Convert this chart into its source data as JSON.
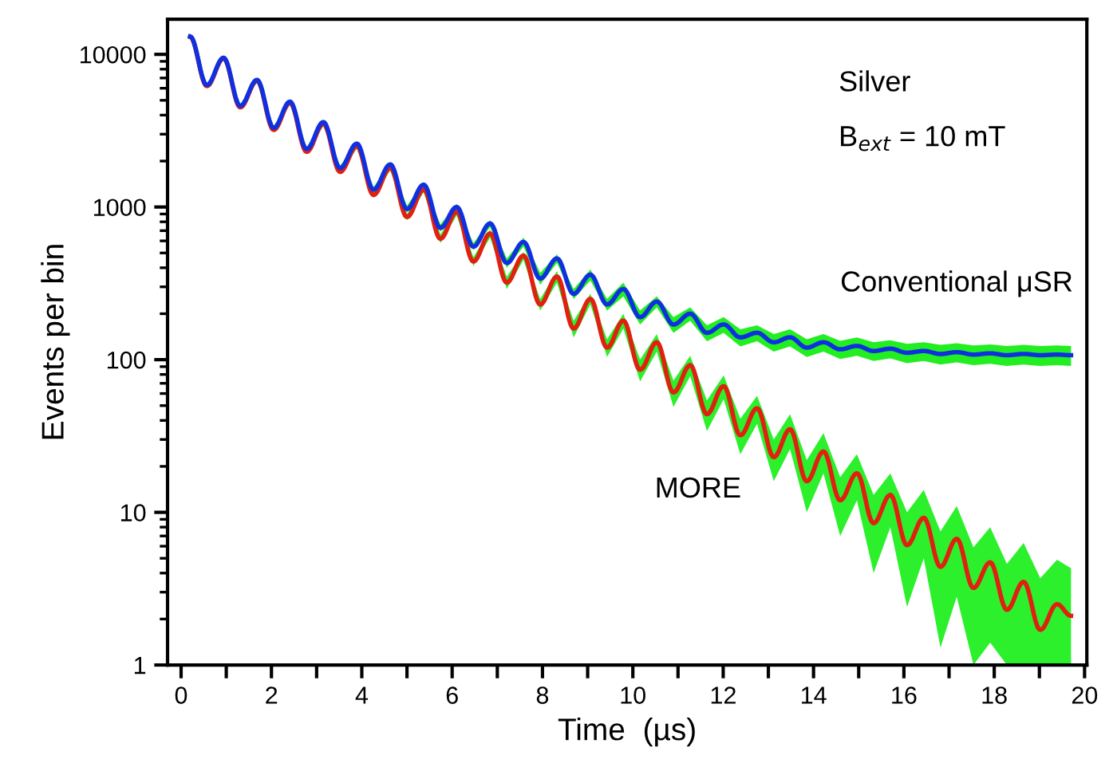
{
  "chart_data": {
    "type": "line",
    "xlabel": "Time  (µs)",
    "ylabel": "Events per bin",
    "log": "y",
    "grid": false,
    "legend": false,
    "marker": "none",
    "line_style": "solid",
    "xlim": [
      -0.3,
      20.05
    ],
    "ylim": [
      1,
      17000
    ],
    "xticks": [
      0,
      {
        "value": 1,
        "label": null
      },
      2,
      {
        "value": 3,
        "label": null
      },
      4,
      {
        "value": 5,
        "label": null
      },
      6,
      {
        "value": 7,
        "label": null
      },
      8,
      {
        "value": 9,
        "label": null
      },
      10,
      {
        "value": 11,
        "label": null
      },
      12,
      {
        "value": 13,
        "label": null
      },
      14,
      {
        "value": 15,
        "label": null
      },
      16,
      {
        "value": 17,
        "label": null
      },
      18,
      {
        "value": 19,
        "label": null
      },
      20
    ],
    "yticks": [
      1,
      10,
      100,
      1000,
      10000
    ],
    "annotations": [
      "Silver",
      "B$_{ext}$ = 10 mT"
    ],
    "x": [
      0.2,
      0.57,
      0.94,
      1.31,
      1.68,
      2.05,
      2.41,
      2.78,
      3.15,
      3.52,
      3.89,
      4.26,
      4.63,
      5.0,
      5.37,
      5.74,
      6.1,
      6.47,
      6.84,
      7.21,
      7.58,
      7.95,
      8.32,
      8.69,
      9.06,
      9.43,
      9.79,
      10.16,
      10.53,
      10.9,
      11.27,
      11.64,
      12.01,
      12.38,
      12.75,
      13.12,
      13.48,
      13.85,
      14.22,
      14.59,
      14.96,
      15.33,
      15.7,
      16.07,
      16.44,
      16.81,
      17.17,
      17.54,
      17.91,
      18.28,
      18.65,
      19.02,
      19.39,
      19.7
    ],
    "series": [
      {
        "name": "Conventional μSR",
        "color": "#1030e0",
        "values": [
          13100,
          6300,
          9500,
          4600,
          6800,
          3300,
          4900,
          2400,
          3600,
          1800,
          2600,
          1300,
          1900,
          970,
          1400,
          730,
          1000,
          550,
          780,
          430,
          590,
          340,
          460,
          270,
          360,
          230,
          290,
          190,
          240,
          170,
          200,
          150,
          170,
          140,
          150,
          130,
          140,
          120,
          130,
          117,
          123,
          114,
          118,
          111,
          114,
          109,
          112,
          108,
          110,
          107,
          109,
          107,
          108,
          107
        ],
        "lower": [
          12900,
          6200,
          9400,
          4500,
          6700,
          3210,
          4800,
          2330,
          3510,
          1740,
          2520,
          1250,
          1830,
          920,
          1340,
          690,
          950,
          520,
          740,
          400,
          550,
          310,
          430,
          250,
          330,
          210,
          260,
          170,
          220,
          150,
          180,
          132,
          150,
          122,
          132,
          113,
          122,
          104,
          113,
          101,
          106,
          98,
          102,
          95,
          98,
          93,
          96,
          92,
          94,
          91,
          93,
          91,
          92,
          91
        ],
        "upper": [
          13300,
          6400,
          9600,
          4700,
          6900,
          3390,
          5000,
          2470,
          3690,
          1860,
          2680,
          1350,
          1970,
          1020,
          1460,
          770,
          1050,
          580,
          820,
          460,
          630,
          370,
          490,
          290,
          390,
          250,
          320,
          210,
          260,
          190,
          220,
          168,
          190,
          158,
          168,
          147,
          158,
          136,
          147,
          133,
          140,
          130,
          134,
          127,
          130,
          125,
          128,
          124,
          126,
          123,
          125,
          123,
          124,
          123
        ]
      },
      {
        "name": "MORE",
        "color": "#e02010",
        "values": [
          13000,
          6200,
          9400,
          4500,
          6700,
          3200,
          4800,
          2300,
          3500,
          1700,
          2500,
          1200,
          1800,
          860,
          1300,
          620,
          930,
          440,
          670,
          320,
          480,
          230,
          350,
          160,
          250,
          120,
          180,
          86,
          130,
          61,
          92,
          44,
          67,
          32,
          48,
          23,
          35,
          16,
          25,
          12,
          18,
          8.5,
          13,
          6.1,
          9.2,
          4.4,
          6.7,
          3.2,
          4.7,
          2.3,
          3.5,
          1.7,
          2.5,
          2.1
        ],
        "lower": [
          12800,
          6100,
          9300,
          4400,
          6600,
          3100,
          4700,
          2230,
          3410,
          1640,
          2420,
          1150,
          1740,
          820,
          1250,
          580,
          880,
          410,
          630,
          290,
          450,
          210,
          320,
          140,
          230,
          104,
          160,
          72,
          113,
          49,
          78,
          34,
          55,
          24,
          38,
          16,
          26,
          10,
          18,
          7,
          12,
          4,
          8,
          2.4,
          5,
          1.3,
          2.8,
          1,
          1.4,
          1,
          1,
          1,
          1,
          1
        ],
        "upper": [
          13200,
          6300,
          9500,
          4600,
          6800,
          3300,
          4900,
          2370,
          3590,
          1760,
          2580,
          1250,
          1860,
          900,
          1350,
          660,
          980,
          470,
          710,
          350,
          510,
          250,
          380,
          180,
          270,
          136,
          200,
          100,
          147,
          73,
          106,
          54,
          79,
          41,
          58,
          30,
          44,
          22,
          33,
          17,
          24,
          13,
          18,
          10,
          14,
          7.5,
          11,
          5.9,
          8,
          4.6,
          6.3,
          3.7,
          4.9,
          4.3
        ]
      }
    ]
  }
}
